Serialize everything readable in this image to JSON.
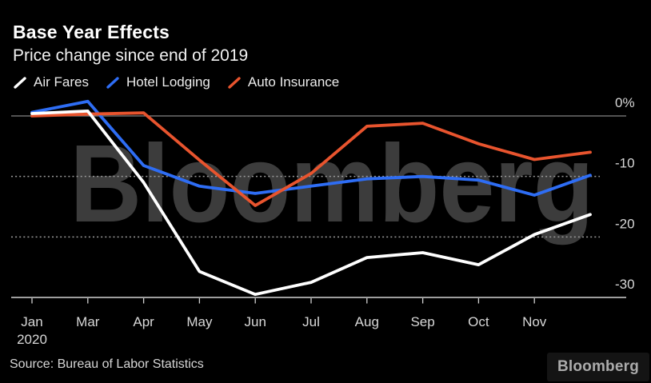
{
  "header": {
    "title": "Base Year Effects",
    "subtitle": "Price change since end of 2019"
  },
  "legend": [
    {
      "label": "Air Fares",
      "color": "#ffffff"
    },
    {
      "label": "Hotel Lodging",
      "color": "#2e6df4"
    },
    {
      "label": "Auto Insurance",
      "color": "#e8542e"
    }
  ],
  "chart_data": {
    "type": "line",
    "categories": [
      "Jan",
      "Mar",
      "Apr",
      "May",
      "Jun",
      "Jul",
      "Aug",
      "Sep",
      "Oct",
      "Nov"
    ],
    "first_tick_year": "2020",
    "x_slots": 11,
    "series": [
      {
        "name": "Air Fares",
        "color": "#ffffff",
        "values": [
          0.4,
          0.8,
          -11.0,
          -25.7,
          -29.5,
          -27.5,
          -23.4,
          -22.6,
          -24.6,
          -19.6,
          -16.3
        ]
      },
      {
        "name": "Hotel Lodging",
        "color": "#2e6df4",
        "values": [
          0.6,
          2.4,
          -8.2,
          -11.6,
          -12.8,
          -11.6,
          -10.4,
          -10.0,
          -10.6,
          -13.1,
          -9.8
        ]
      },
      {
        "name": "Auto Insurance",
        "color": "#e8542e",
        "values": [
          0.0,
          0.3,
          0.5,
          -7.3,
          -14.8,
          -9.5,
          -1.7,
          -1.2,
          -4.6,
          -7.2,
          -6.0
        ]
      }
    ],
    "y_ticks": [
      {
        "label": "0%",
        "value": 0
      },
      {
        "label": "-10",
        "value": -10
      },
      {
        "label": "-20",
        "value": -20
      },
      {
        "label": "-30",
        "value": -30
      }
    ],
    "ylim": [
      -30,
      2.5
    ],
    "grid": "horizontal-dotted",
    "legend_position": "top",
    "watermark": "Bloomberg"
  },
  "footer": {
    "source": "Source: Bureau of Labor Statistics",
    "logo": "Bloomberg"
  },
  "colors": {
    "background": "#000000",
    "watermark": "#3c3c3c",
    "zero_line": "#828282",
    "dotted_grid": "#9a9a9a",
    "axis_line": "#d2d2d2",
    "axis_text": "#d8d8d8"
  }
}
